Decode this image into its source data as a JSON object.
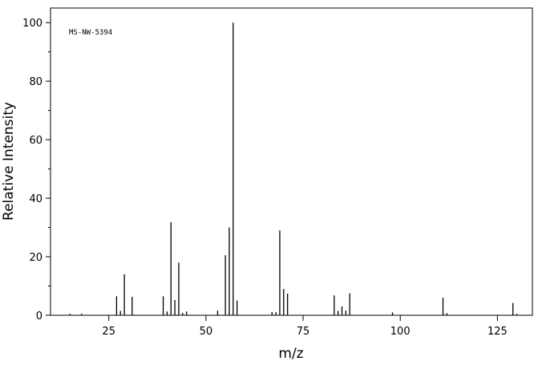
{
  "chart_data": {
    "type": "stem",
    "annotation": "MS-NW-5394",
    "xlabel": "m/z",
    "ylabel": "Relative Intensity",
    "color": "#000000",
    "x": [
      15,
      18,
      27,
      28,
      29,
      31,
      39,
      40,
      41,
      42,
      43,
      44,
      45,
      53,
      55,
      56,
      57,
      58,
      67,
      68,
      69,
      70,
      71,
      83,
      84,
      85,
      86,
      87,
      98,
      111,
      112,
      129,
      130
    ],
    "values": [
      0.5,
      0.5,
      6.5,
      1.5,
      14,
      6.3,
      6.5,
      1.3,
      31.8,
      5.2,
      18,
      0.8,
      1.3,
      1.6,
      20.5,
      30,
      100,
      5,
      1.1,
      1.1,
      29,
      9,
      7.4,
      6.8,
      1.5,
      3,
      1.6,
      7.5,
      1,
      6,
      0.7,
      4.2,
      0.5
    ],
    "xlim": [
      10,
      134
    ],
    "ylim": [
      0,
      105
    ],
    "xticks": [
      25,
      50,
      75,
      100,
      125
    ],
    "yticks": [
      0,
      20,
      40,
      60,
      80,
      100
    ]
  }
}
